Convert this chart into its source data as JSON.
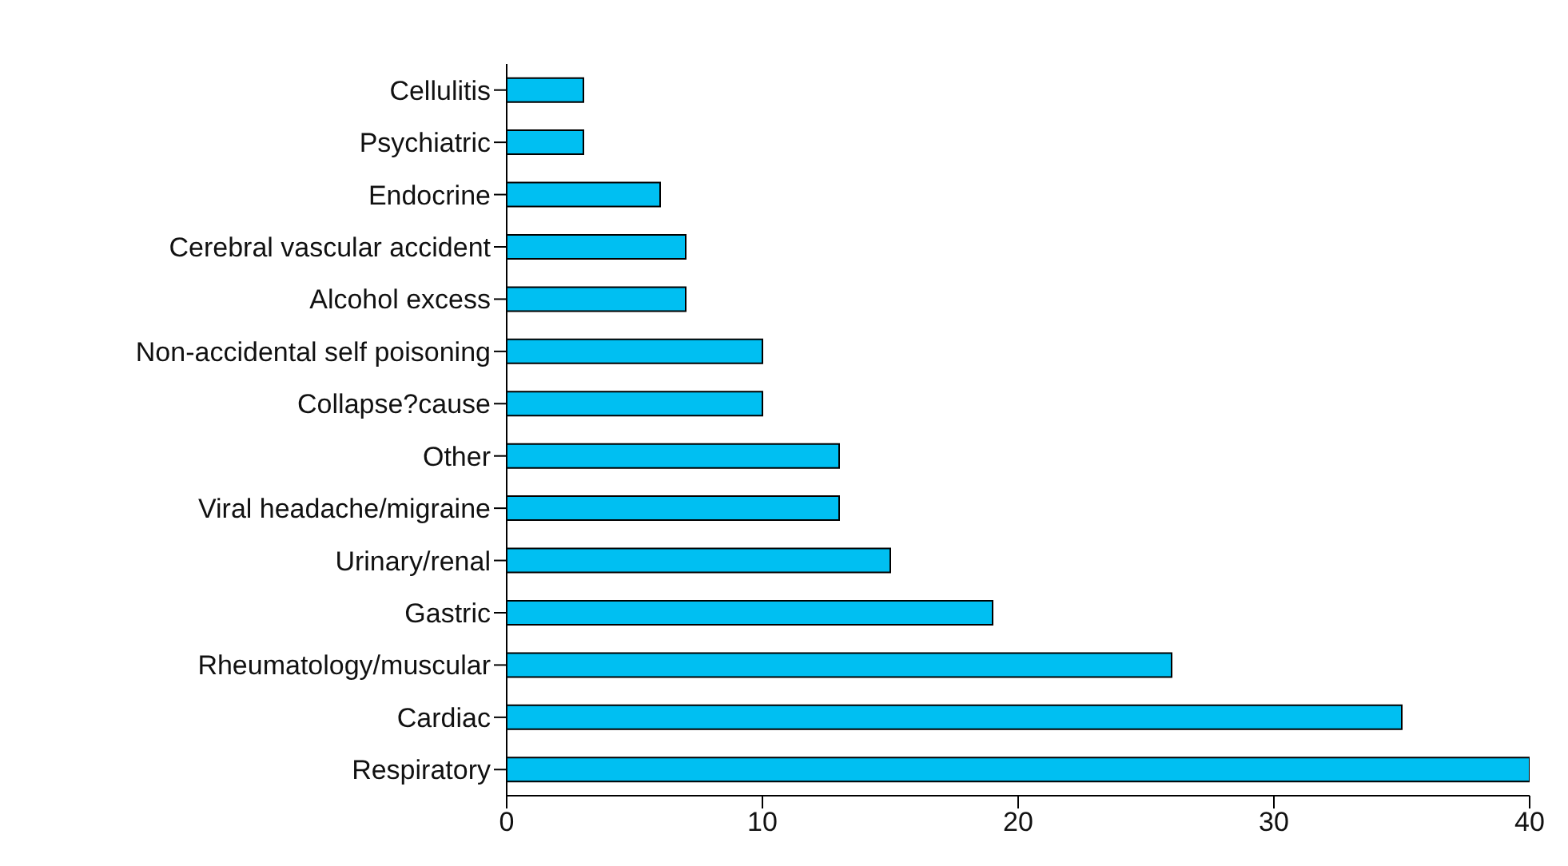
{
  "chart_data": {
    "type": "bar",
    "orientation": "horizontal",
    "categories": [
      "Cellulitis",
      "Psychiatric",
      "Endocrine",
      "Cerebral vascular accident",
      "Alcohol excess",
      "Non-accidental self poisoning",
      "Collapse?cause",
      "Other",
      "Viral headache/migraine",
      "Urinary/renal",
      "Gastric",
      "Rheumatology/muscular",
      "Cardiac",
      "Respiratory"
    ],
    "values": [
      3,
      3,
      6,
      7,
      7,
      10,
      10,
      13,
      13,
      15,
      19,
      26,
      35,
      40
    ],
    "color": "#00bff2",
    "xlim": [
      0,
      40
    ],
    "xticks": [
      0,
      10,
      20,
      30,
      40
    ],
    "grid": false,
    "legend": false
  }
}
